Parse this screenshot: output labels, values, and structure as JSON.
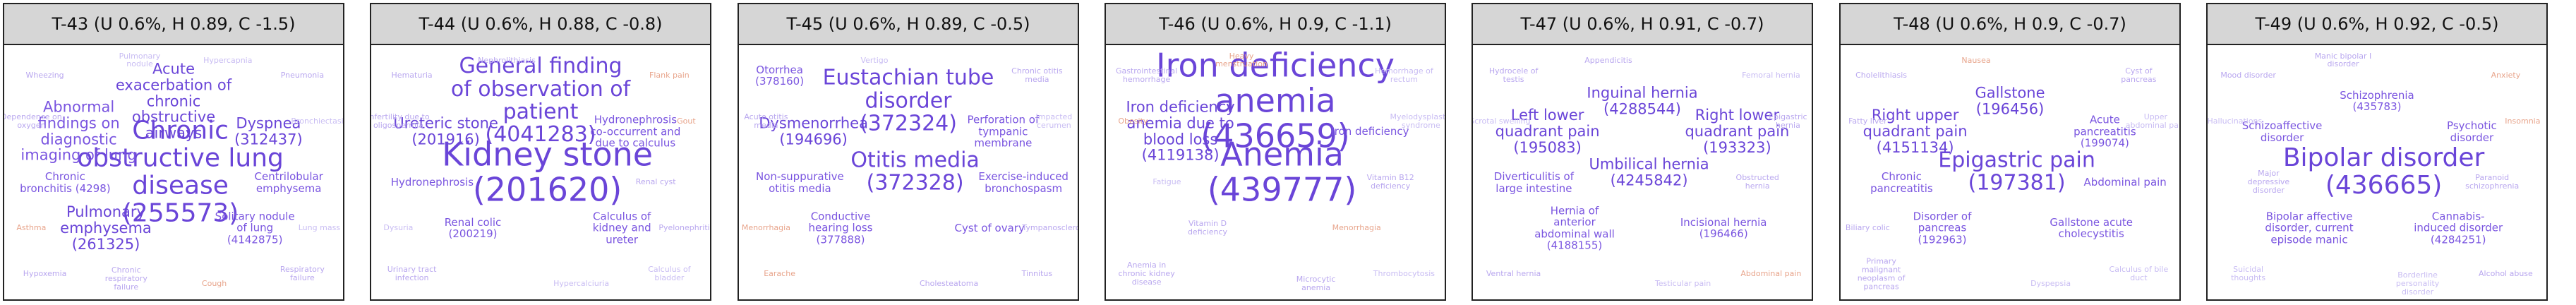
{
  "figure": {
    "panels": [
      {
        "title": "T-43 (U 0.6%, H 0.89, C -1.5)",
        "words": [
          {
            "text": "Chronic obstructive lung disease (255573)",
            "size": 5,
            "color": "#6a45d8"
          },
          {
            "text": "Acute exacerbation of chronic obstructive airways",
            "size": 3,
            "color": "#6a45d8"
          },
          {
            "text": "Abnormal findings on diagnostic imaging of lung",
            "size": 3,
            "color": "#7a55e0"
          },
          {
            "text": "Dyspnea (312437)",
            "size": 3,
            "color": "#6a45d8"
          },
          {
            "text": "Pulmonary emphysema (261325)",
            "size": 3,
            "color": "#6a45d8"
          },
          {
            "text": "Solitary nodule of lung (4142875)",
            "size": 2,
            "color": "#7a55e0"
          },
          {
            "text": "Chronic bronchitis (4298)",
            "size": 2,
            "color": "#7a55e0"
          },
          {
            "text": "Centrilobular emphysema",
            "size": 2,
            "color": "#7a55e0"
          },
          {
            "text": "Wheezing",
            "size": 1,
            "color": "#b9a7ef"
          },
          {
            "text": "Pneumonia",
            "size": 1,
            "color": "#b9a7ef"
          },
          {
            "text": "Hypoxemia",
            "size": 1,
            "color": "#b9a7ef"
          },
          {
            "text": "Respiratory failure",
            "size": 1,
            "color": "#b9a7ef"
          },
          {
            "text": "Pulmonary nodule",
            "size": 1,
            "color": "#c9bdf3"
          },
          {
            "text": "Cough",
            "size": 1,
            "color": "#e8a58c"
          },
          {
            "text": "Dependence on oxygen",
            "size": 1,
            "color": "#b9a7ef"
          },
          {
            "text": "Bronchiectasis",
            "size": 1,
            "color": "#c9bdf3"
          },
          {
            "text": "Asthma",
            "size": 1,
            "color": "#e8a58c"
          },
          {
            "text": "Lung mass",
            "size": 1,
            "color": "#c9bdf3"
          },
          {
            "text": "Chronic respiratory failure",
            "size": 1,
            "color": "#b9a7ef"
          },
          {
            "text": "Hypercapnia",
            "size": 1,
            "color": "#c9bdf3"
          }
        ]
      },
      {
        "title": "T-44 (U 0.6%, H 0.88, C -0.8)",
        "words": [
          {
            "text": "Kidney stone (201620)",
            "size": 6,
            "color": "#6a45d8"
          },
          {
            "text": "General finding of observation of patient (4041283)",
            "size": 4,
            "color": "#6a45d8"
          },
          {
            "text": "Ureteric stone (201916)",
            "size": 3,
            "color": "#6a45d8"
          },
          {
            "text": "Hydronephrosis co-occurrent and due to calculus",
            "size": 2,
            "color": "#7a55e0"
          },
          {
            "text": "Renal colic (200219)",
            "size": 2,
            "color": "#7a55e0"
          },
          {
            "text": "Calculus of kidney and ureter",
            "size": 2,
            "color": "#7a55e0"
          },
          {
            "text": "Hydronephrosis",
            "size": 2,
            "color": "#7a55e0"
          },
          {
            "text": "Renal cyst",
            "size": 1,
            "color": "#b9a7ef"
          },
          {
            "text": "Hematuria",
            "size": 1,
            "color": "#b9a7ef"
          },
          {
            "text": "Flank pain",
            "size": 1,
            "color": "#e8a58c"
          },
          {
            "text": "Urinary tract infection",
            "size": 1,
            "color": "#b9a7ef"
          },
          {
            "text": "Calculus of bladder",
            "size": 1,
            "color": "#c9bdf3"
          },
          {
            "text": "Nephrolithiasis",
            "size": 1,
            "color": "#b9a7ef"
          },
          {
            "text": "Hypercalciuria",
            "size": 1,
            "color": "#c9bdf3"
          },
          {
            "text": "Infertility due to oligospermia",
            "size": 1,
            "color": "#b9a7ef"
          },
          {
            "text": "Gout",
            "size": 1,
            "color": "#e8a58c"
          },
          {
            "text": "Dysuria",
            "size": 1,
            "color": "#c9bdf3"
          },
          {
            "text": "Pyelonephritis",
            "size": 1,
            "color": "#b9a7ef"
          }
        ]
      },
      {
        "title": "T-45 (U 0.6%, H 0.89, C -0.5)",
        "words": [
          {
            "text": "Otitis media (372328)",
            "size": 4,
            "color": "#6a45d8"
          },
          {
            "text": "Eustachian tube disorder (372324)",
            "size": 4,
            "color": "#6a45d8"
          },
          {
            "text": "Dysmenorrhea (194696)",
            "size": 3,
            "color": "#6a45d8"
          },
          {
            "text": "Perforation of tympanic membrane",
            "size": 2,
            "color": "#7a55e0"
          },
          {
            "text": "Conductive hearing loss (377888)",
            "size": 2,
            "color": "#7a55e0"
          },
          {
            "text": "Cyst of ovary",
            "size": 2,
            "color": "#7a55e0"
          },
          {
            "text": "Non-suppurative otitis media",
            "size": 2,
            "color": "#7a55e0"
          },
          {
            "text": "Exercise-induced bronchospasm",
            "size": 2,
            "color": "#7a55e0"
          },
          {
            "text": "Otorrhea (378160)",
            "size": 2,
            "color": "#7a55e0"
          },
          {
            "text": "Chronic otitis media",
            "size": 1,
            "color": "#b9a7ef"
          },
          {
            "text": "Earache",
            "size": 1,
            "color": "#e8a58c"
          },
          {
            "text": "Tinnitus",
            "size": 1,
            "color": "#b9a7ef"
          },
          {
            "text": "Vertigo",
            "size": 1,
            "color": "#c9bdf3"
          },
          {
            "text": "Cholesteatoma",
            "size": 1,
            "color": "#b9a7ef"
          },
          {
            "text": "Acute otitis media",
            "size": 1,
            "color": "#b9a7ef"
          },
          {
            "text": "Impacted cerumen",
            "size": 1,
            "color": "#c9bdf3"
          },
          {
            "text": "Menorrhagia",
            "size": 1,
            "color": "#e8a58c"
          },
          {
            "text": "Tympanosclerosis",
            "size": 1,
            "color": "#b9a7ef"
          }
        ]
      },
      {
        "title": "T-46 (U 0.6%, H 0.9, C -1.1)",
        "words": [
          {
            "text": "Anemia (439777)",
            "size": 6,
            "color": "#6a45d8"
          },
          {
            "text": "Iron deficiency anemia (436659)",
            "size": 6,
            "color": "#6a45d8"
          },
          {
            "text": "Iron deficiency anemia due to blood loss (4119138)",
            "size": 3,
            "color": "#6a45d8"
          },
          {
            "text": "Iron deficiency",
            "size": 2,
            "color": "#7a55e0"
          },
          {
            "text": "Vitamin D deficiency",
            "size": 1,
            "color": "#b9a7ef"
          },
          {
            "text": "Menorrhagia",
            "size": 1,
            "color": "#e8a58c"
          },
          {
            "text": "Fatigue",
            "size": 1,
            "color": "#c9bdf3"
          },
          {
            "text": "Vitamin B12 deficiency",
            "size": 1,
            "color": "#b9a7ef"
          },
          {
            "text": "Gastrointestinal hemorrhage",
            "size": 1,
            "color": "#b9a7ef"
          },
          {
            "text": "Hemorrhage of rectum",
            "size": 1,
            "color": "#c9bdf3"
          },
          {
            "text": "Anemia in chronic kidney disease",
            "size": 1,
            "color": "#b9a7ef"
          },
          {
            "text": "Thrombocytosis",
            "size": 1,
            "color": "#c9bdf3"
          },
          {
            "text": "Heavy menstruation",
            "size": 1,
            "color": "#e8a58c"
          },
          {
            "text": "Microcytic anemia",
            "size": 1,
            "color": "#b9a7ef"
          },
          {
            "text": "Obesity",
            "size": 1,
            "color": "#e8a58c"
          },
          {
            "text": "Myelodysplastic syndrome",
            "size": 1,
            "color": "#c9bdf3"
          }
        ]
      },
      {
        "title": "T-47 (U 0.6%, H 0.91, C -0.7)",
        "words": [
          {
            "text": "Umbilical hernia (4245842)",
            "size": 3,
            "color": "#6a45d8"
          },
          {
            "text": "Inguinal hernia (4288544)",
            "size": 3,
            "color": "#6a45d8"
          },
          {
            "text": "Left lower quadrant pain (195083)",
            "size": 3,
            "color": "#6a45d8"
          },
          {
            "text": "Right lower quadrant pain (193323)",
            "size": 3,
            "color": "#6a45d8"
          },
          {
            "text": "Hernia of anterior abdominal wall (4188155)",
            "size": 2,
            "color": "#7a55e0"
          },
          {
            "text": "Incisional hernia (196466)",
            "size": 2,
            "color": "#7a55e0"
          },
          {
            "text": "Diverticulitis of large intestine",
            "size": 2,
            "color": "#7a55e0"
          },
          {
            "text": "Obstructed hernia",
            "size": 1,
            "color": "#b9a7ef"
          },
          {
            "text": "Hydrocele of testis",
            "size": 1,
            "color": "#b9a7ef"
          },
          {
            "text": "Femoral hernia",
            "size": 1,
            "color": "#c9bdf3"
          },
          {
            "text": "Ventral hernia",
            "size": 1,
            "color": "#b9a7ef"
          },
          {
            "text": "Abdominal pain",
            "size": 1,
            "color": "#e8a58c"
          },
          {
            "text": "Appendicitis",
            "size": 1,
            "color": "#b9a7ef"
          },
          {
            "text": "Testicular pain",
            "size": 1,
            "color": "#c9bdf3"
          },
          {
            "text": "Scrotal swelling",
            "size": 1,
            "color": "#c9bdf3"
          },
          {
            "text": "Epigastric hernia",
            "size": 1,
            "color": "#b9a7ef"
          }
        ]
      },
      {
        "title": "T-48 (U 0.6%, H 0.9, C -0.7)",
        "words": [
          {
            "text": "Epigastric pain (197381)",
            "size": 4,
            "color": "#6a45d8"
          },
          {
            "text": "Gallstone (196456)",
            "size": 3,
            "color": "#6a45d8"
          },
          {
            "text": "Right upper quadrant pain (4151134)",
            "size": 3,
            "color": "#6a45d8"
          },
          {
            "text": "Acute pancreatitis (199074)",
            "size": 2,
            "color": "#7a55e0"
          },
          {
            "text": "Disorder of pancreas (192963)",
            "size": 2,
            "color": "#7a55e0"
          },
          {
            "text": "Gallstone acute cholecystitis",
            "size": 2,
            "color": "#7a55e0"
          },
          {
            "text": "Chronic pancreatitis",
            "size": 2,
            "color": "#7a55e0"
          },
          {
            "text": "Abdominal pain",
            "size": 2,
            "color": "#7a55e0"
          },
          {
            "text": "Cholelithiasis",
            "size": 1,
            "color": "#b9a7ef"
          },
          {
            "text": "Cyst of pancreas",
            "size": 1,
            "color": "#b9a7ef"
          },
          {
            "text": "Primary malignant neoplasm of pancreas",
            "size": 1,
            "color": "#b9a7ef"
          },
          {
            "text": "Calculus of bile duct",
            "size": 1,
            "color": "#c9bdf3"
          },
          {
            "text": "Nausea",
            "size": 1,
            "color": "#e8a58c"
          },
          {
            "text": "Dyspepsia",
            "size": 1,
            "color": "#c9bdf3"
          },
          {
            "text": "Fatty liver",
            "size": 1,
            "color": "#b9a7ef"
          },
          {
            "text": "Upper abdominal pain",
            "size": 1,
            "color": "#c9bdf3"
          },
          {
            "text": "Biliary colic",
            "size": 1,
            "color": "#b9a7ef"
          }
        ]
      },
      {
        "title": "T-49 (U 0.6%, H 0.92, C -0.5)",
        "words": [
          {
            "text": "Bipolar disorder (436665)",
            "size": 5,
            "color": "#6a45d8"
          },
          {
            "text": "Schizophrenia (435783)",
            "size": 2,
            "color": "#7a55e0"
          },
          {
            "text": "Schizoaffective disorder",
            "size": 2,
            "color": "#7a55e0"
          },
          {
            "text": "Psychotic disorder",
            "size": 2,
            "color": "#7a55e0"
          },
          {
            "text": "Bipolar affective disorder, current episode manic",
            "size": 2,
            "color": "#7a55e0"
          },
          {
            "text": "Cannabis-induced disorder (4284251)",
            "size": 2,
            "color": "#7a55e0"
          },
          {
            "text": "Major depressive disorder",
            "size": 1,
            "color": "#b9a7ef"
          },
          {
            "text": "Paranoid schizophrenia",
            "size": 1,
            "color": "#b9a7ef"
          },
          {
            "text": "Mood disorder",
            "size": 1,
            "color": "#b9a7ef"
          },
          {
            "text": "Anxiety",
            "size": 1,
            "color": "#e8a58c"
          },
          {
            "text": "Suicidal thoughts",
            "size": 1,
            "color": "#c9bdf3"
          },
          {
            "text": "Alcohol abuse",
            "size": 1,
            "color": "#b9a7ef"
          },
          {
            "text": "Manic bipolar I disorder",
            "size": 1,
            "color": "#b9a7ef"
          },
          {
            "text": "Borderline personality disorder",
            "size": 1,
            "color": "#c9bdf3"
          },
          {
            "text": "Hallucinations",
            "size": 1,
            "color": "#c9bdf3"
          },
          {
            "text": "Insomnia",
            "size": 1,
            "color": "#e8a58c"
          }
        ]
      }
    ]
  },
  "chart_data": {
    "type": "other",
    "description_type": "word-cloud-panels",
    "series": [
      {
        "name": "T-43 (U 0.6%, H 0.89, C -1.5)",
        "values": [
          "Chronic obstructive lung disease (255573)",
          "Dyspnea (312437)",
          "Pulmonary emphysema (261325)"
        ]
      },
      {
        "name": "T-44 (U 0.6%, H 0.88, C -0.8)",
        "values": [
          "Kidney stone (201620)",
          "General finding of observation of patient (4041283)",
          "Ureteric stone (201916)"
        ]
      },
      {
        "name": "T-45 (U 0.6%, H 0.89, C -0.5)",
        "values": [
          "Otitis media (372328)",
          "Eustachian tube disorder (372324)",
          "Dysmenorrhea (194696)"
        ]
      },
      {
        "name": "T-46 (U 0.6%, H 0.9, C -1.1)",
        "values": [
          "Anemia (439777)",
          "Iron deficiency anemia (436659)",
          "Iron deficiency anemia due to blood loss (4119138)"
        ]
      },
      {
        "name": "T-47 (U 0.6%, H 0.91, C -0.7)",
        "values": [
          "Umbilical hernia (4245842)",
          "Inguinal hernia (4288544)",
          "Left lower quadrant pain (195083)"
        ]
      },
      {
        "name": "T-48 (U 0.6%, H 0.9, C -0.7)",
        "values": [
          "Epigastric pain (197381)",
          "Gallstone (196456)",
          "Right upper quadrant pain (4151134)"
        ]
      },
      {
        "name": "T-49 (U 0.6%, H 0.92, C -0.5)",
        "values": [
          "Bipolar disorder (436665)",
          "Cannabis-induced disorder (4284251)"
        ]
      }
    ]
  }
}
